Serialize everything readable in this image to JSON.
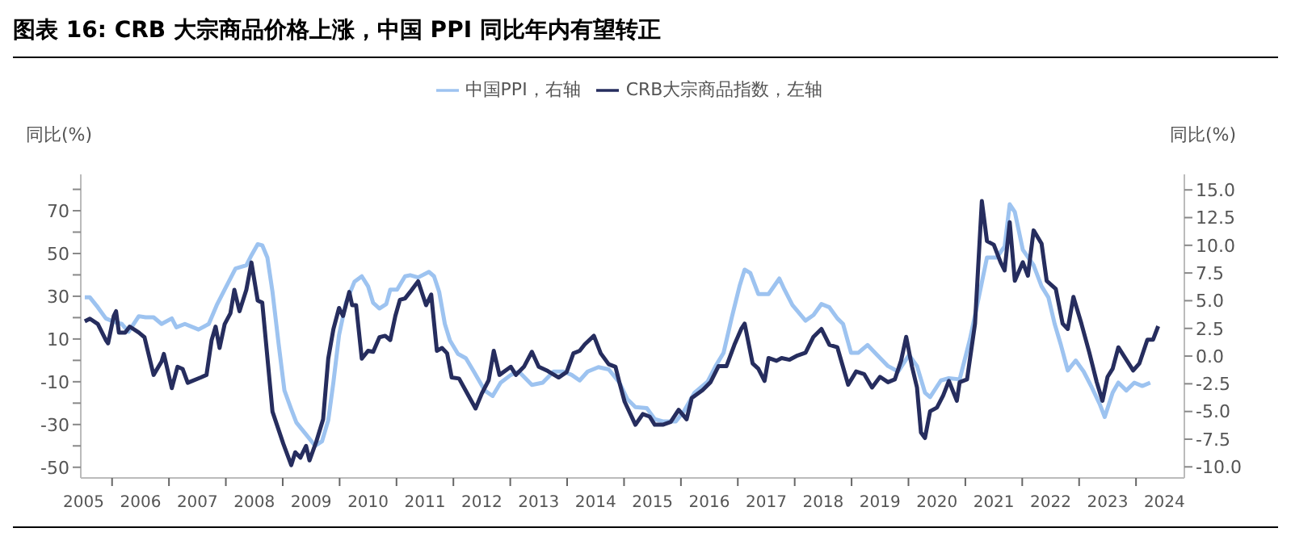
{
  "chart_data": {
    "type": "line",
    "title": "图表 16: CRB 大宗商品价格上涨，中国 PPI 同比年内有望转正",
    "ylabel": "同比(%)",
    "y2label": "同比(%)",
    "legend": "top",
    "marker": "none",
    "line_style": "solid",
    "xlim": [
      2005.45,
      2024.85
    ],
    "xticks": [
      {
        "value": 2005.5,
        "label": "2005"
      },
      {
        "value": 2006,
        "label": null
      },
      {
        "value": 2006.5,
        "label": "2006"
      },
      {
        "value": 2007,
        "label": null
      },
      {
        "value": 2007.5,
        "label": "2007"
      },
      {
        "value": 2008,
        "label": null
      },
      {
        "value": 2008.5,
        "label": "2008"
      },
      {
        "value": 2009,
        "label": null
      },
      {
        "value": 2009.5,
        "label": "2009"
      },
      {
        "value": 2010,
        "label": null
      },
      {
        "value": 2010.5,
        "label": "2010"
      },
      {
        "value": 2011,
        "label": null
      },
      {
        "value": 2011.5,
        "label": "2011"
      },
      {
        "value": 2012,
        "label": null
      },
      {
        "value": 2012.5,
        "label": "2012"
      },
      {
        "value": 2013,
        "label": null
      },
      {
        "value": 2013.5,
        "label": "2013"
      },
      {
        "value": 2014,
        "label": null
      },
      {
        "value": 2014.5,
        "label": "2014"
      },
      {
        "value": 2015,
        "label": null
      },
      {
        "value": 2015.5,
        "label": "2015"
      },
      {
        "value": 2016,
        "label": null
      },
      {
        "value": 2016.5,
        "label": "2016"
      },
      {
        "value": 2017,
        "label": null
      },
      {
        "value": 2017.5,
        "label": "2017"
      },
      {
        "value": 2018,
        "label": null
      },
      {
        "value": 2018.5,
        "label": "2018"
      },
      {
        "value": 2019,
        "label": null
      },
      {
        "value": 2019.5,
        "label": "2019"
      },
      {
        "value": 2020,
        "label": null
      },
      {
        "value": 2020.5,
        "label": "2020"
      },
      {
        "value": 2021,
        "label": null
      },
      {
        "value": 2021.5,
        "label": "2021"
      },
      {
        "value": 2022,
        "label": null
      },
      {
        "value": 2022.5,
        "label": "2022"
      },
      {
        "value": 2023,
        "label": null
      },
      {
        "value": 2023.5,
        "label": "2023"
      },
      {
        "value": 2024,
        "label": null
      },
      {
        "value": 2024.5,
        "label": "2024"
      }
    ],
    "ylim": [
      -55,
      87
    ],
    "yticks": [
      -50,
      {
        "value": -40,
        "label": null
      },
      -30,
      {
        "value": -20,
        "label": null
      },
      -10,
      {
        "value": 0,
        "label": null
      },
      10,
      {
        "value": 20,
        "label": null
      },
      30,
      {
        "value": 40,
        "label": null
      },
      50,
      {
        "value": 60,
        "label": null
      },
      70,
      {
        "value": 80,
        "label": null
      }
    ],
    "y2lim": [
      -11,
      16.4
    ],
    "y2ticks": [
      {
        "value": -10,
        "label": "-10.0"
      },
      {
        "value": -7.5,
        "label": "-7.5"
      },
      {
        "value": -5,
        "label": "-5.0"
      },
      {
        "value": -2.5,
        "label": "-2.5"
      },
      {
        "value": 0,
        "label": "0.0"
      },
      {
        "value": 2.5,
        "label": "2.5"
      },
      {
        "value": 5,
        "label": "5.0"
      },
      {
        "value": 7.5,
        "label": "7.5"
      },
      {
        "value": 10,
        "label": "10.0"
      },
      {
        "value": 12.5,
        "label": "12.5"
      },
      {
        "value": 15,
        "label": "15.0"
      }
    ],
    "series": [
      {
        "name": "中国PPI，右轴",
        "color": "#9dc3f0",
        "axis": "y2",
        "x": [
          2005.52,
          2005.61,
          2005.75,
          2005.89,
          2006.03,
          2006.17,
          2006.29,
          2006.47,
          2006.59,
          2006.73,
          2006.87,
          2007.05,
          2007.13,
          2007.28,
          2007.52,
          2007.7,
          2007.84,
          2007.98,
          2008.17,
          2008.36,
          2008.45,
          2008.56,
          2008.64,
          2008.73,
          2008.82,
          2008.93,
          2009.03,
          2009.15,
          2009.24,
          2009.43,
          2009.57,
          2009.69,
          2009.8,
          2009.89,
          2009.99,
          2010.11,
          2010.26,
          2010.39,
          2010.5,
          2010.59,
          2010.7,
          2010.82,
          2010.89,
          2011.01,
          2011.15,
          2011.24,
          2011.38,
          2011.57,
          2011.66,
          2011.75,
          2011.85,
          2011.94,
          2012.08,
          2012.22,
          2012.36,
          2012.55,
          2012.69,
          2012.83,
          2013.01,
          2013.15,
          2013.38,
          2013.57,
          2013.76,
          2013.94,
          2014.08,
          2014.22,
          2014.36,
          2014.55,
          2014.73,
          2014.92,
          2015.06,
          2015.2,
          2015.4,
          2015.54,
          2015.68,
          2015.91,
          2016.05,
          2016.24,
          2016.47,
          2016.61,
          2016.75,
          2016.89,
          2017.03,
          2017.12,
          2017.22,
          2017.36,
          2017.54,
          2017.73,
          2017.82,
          2017.96,
          2018.19,
          2018.33,
          2018.47,
          2018.61,
          2018.75,
          2018.85,
          2018.99,
          2019.12,
          2019.28,
          2019.45,
          2019.64,
          2019.82,
          2020.01,
          2020.15,
          2020.29,
          2020.38,
          2020.57,
          2020.71,
          2020.9,
          2021.08,
          2021.22,
          2021.38,
          2021.55,
          2021.69,
          2021.78,
          2021.87,
          2022.01,
          2022.2,
          2022.34,
          2022.46,
          2022.57,
          2022.68,
          2022.8,
          2022.94,
          2023.08,
          2023.22,
          2023.36,
          2023.45,
          2023.59,
          2023.69,
          2023.83,
          2023.97,
          2024.11,
          2024.25
        ],
        "values": [
          5.3,
          5.3,
          4.4,
          3.4,
          3.1,
          2.9,
          2.2,
          3.6,
          3.5,
          3.5,
          2.9,
          3.4,
          2.6,
          2.9,
          2.4,
          2.9,
          4.6,
          6.0,
          7.9,
          8.2,
          9.1,
          10.1,
          10.0,
          8.9,
          5.8,
          1.0,
          -3.1,
          -4.8,
          -6.0,
          -7.2,
          -8.1,
          -7.7,
          -5.8,
          -2.4,
          1.9,
          4.8,
          6.7,
          7.2,
          6.3,
          4.8,
          4.3,
          4.7,
          6.0,
          6.0,
          7.2,
          7.3,
          7.1,
          7.6,
          7.2,
          5.8,
          2.9,
          1.4,
          0.2,
          -0.2,
          -1.4,
          -3.1,
          -3.6,
          -2.4,
          -1.7,
          -1.4,
          -2.6,
          -2.4,
          -1.4,
          -1.4,
          -1.7,
          -2.2,
          -1.4,
          -1.0,
          -1.2,
          -2.4,
          -3.9,
          -4.6,
          -4.7,
          -5.7,
          -5.9,
          -5.9,
          -5.0,
          -3.3,
          -2.3,
          -0.9,
          0.3,
          3.4,
          6.3,
          7.8,
          7.5,
          5.6,
          5.6,
          7.0,
          6.0,
          4.6,
          3.2,
          3.7,
          4.7,
          4.4,
          3.4,
          2.9,
          0.3,
          0.3,
          1.0,
          0.1,
          -0.9,
          -1.4,
          0.1,
          -0.9,
          -3.3,
          -3.7,
          -2.2,
          -2.0,
          -2.1,
          1.5,
          4.9,
          8.9,
          8.9,
          9.9,
          13.7,
          13.0,
          9.6,
          8.2,
          6.3,
          5.3,
          2.9,
          1.0,
          -1.3,
          -0.4,
          -1.4,
          -2.8,
          -4.3,
          -5.5,
          -3.3,
          -2.4,
          -3.1,
          -2.4,
          -2.7,
          -2.4
        ]
      },
      {
        "name": "CRB大宗商品指数，左轴",
        "color": "#262d5e",
        "axis": "y",
        "x": [
          2005.52,
          2005.61,
          2005.75,
          2005.89,
          2005.93,
          2006.03,
          2006.07,
          2006.12,
          2006.23,
          2006.31,
          2006.47,
          2006.57,
          2006.73,
          2006.87,
          2006.91,
          2007.05,
          2007.15,
          2007.24,
          2007.33,
          2007.56,
          2007.66,
          2007.75,
          2007.82,
          2007.89,
          2007.98,
          2008.08,
          2008.15,
          2008.24,
          2008.36,
          2008.45,
          2008.56,
          2008.64,
          2008.82,
          2009.01,
          2009.15,
          2009.22,
          2009.31,
          2009.41,
          2009.47,
          2009.59,
          2009.71,
          2009.8,
          2009.89,
          2009.99,
          2010.06,
          2010.17,
          2010.22,
          2010.29,
          2010.39,
          2010.5,
          2010.59,
          2010.7,
          2010.8,
          2010.89,
          2010.98,
          2011.06,
          2011.15,
          2011.24,
          2011.38,
          2011.52,
          2011.61,
          2011.71,
          2011.8,
          2011.89,
          2011.97,
          2012.1,
          2012.22,
          2012.39,
          2012.5,
          2012.62,
          2012.71,
          2012.81,
          2013.01,
          2013.1,
          2013.24,
          2013.38,
          2013.5,
          2013.66,
          2013.85,
          2013.99,
          2014.11,
          2014.22,
          2014.31,
          2014.47,
          2014.59,
          2014.73,
          2014.85,
          2014.92,
          2015.01,
          2015.2,
          2015.33,
          2015.45,
          2015.54,
          2015.68,
          2015.82,
          2015.96,
          2016.1,
          2016.19,
          2016.38,
          2016.52,
          2016.66,
          2016.8,
          2016.94,
          2017.06,
          2017.12,
          2017.26,
          2017.36,
          2017.47,
          2017.54,
          2017.68,
          2017.77,
          2017.91,
          2018.05,
          2018.19,
          2018.33,
          2018.47,
          2018.61,
          2018.75,
          2018.94,
          2019.08,
          2019.22,
          2019.36,
          2019.5,
          2019.64,
          2019.76,
          2019.87,
          2019.96,
          2020.06,
          2020.15,
          2020.22,
          2020.29,
          2020.38,
          2020.5,
          2020.61,
          2020.71,
          2020.85,
          2020.9,
          2021.03,
          2021.17,
          2021.29,
          2021.38,
          2021.5,
          2021.62,
          2021.69,
          2021.78,
          2021.87,
          2022.01,
          2022.1,
          2022.2,
          2022.34,
          2022.43,
          2022.59,
          2022.71,
          2022.8,
          2022.9,
          2023.04,
          2023.18,
          2023.31,
          2023.41,
          2023.5,
          2023.59,
          2023.69,
          2023.83,
          2023.95,
          2024.06,
          2024.2,
          2024.3,
          2024.39
        ],
        "values": [
          18.3,
          19.5,
          17,
          9.5,
          8,
          20.8,
          23,
          13,
          13,
          15.8,
          13,
          10.8,
          -6.8,
          -0.5,
          3,
          -13,
          -3,
          -4,
          -10.5,
          -8,
          -6.8,
          9.5,
          15.8,
          5.8,
          17,
          22,
          33,
          23,
          33,
          45.8,
          28,
          27,
          -24,
          -39,
          -49,
          -43,
          -45.5,
          -40,
          -46.8,
          -38,
          -27.5,
          0.8,
          14.5,
          24.5,
          20.8,
          32,
          25.8,
          25.8,
          0.8,
          4.5,
          4,
          10.8,
          11.5,
          9.5,
          20.8,
          28.3,
          29,
          32,
          37,
          25.8,
          30.8,
          4.5,
          5.8,
          3.3,
          -8,
          -8.5,
          -14.3,
          -22.5,
          -15.5,
          -9.3,
          4.5,
          -6.8,
          -3,
          -6.8,
          -3,
          4,
          -3,
          -5,
          -8,
          -5.5,
          3.3,
          4.5,
          7.5,
          11.5,
          3.3,
          -1.8,
          -3,
          -10.5,
          -19.3,
          -30.1,
          -25.1,
          -26.3,
          -30.1,
          -30.1,
          -28.8,
          -23.1,
          -27.6,
          -17.6,
          -13.9,
          -10.2,
          -2.7,
          -2.7,
          7.3,
          14.7,
          17.2,
          -1.4,
          -3.9,
          -9.6,
          1.1,
          -0.2,
          1.1,
          0.3,
          2.3,
          3.6,
          11,
          14.7,
          7.3,
          6.1,
          -11.4,
          -5.2,
          -6.4,
          -12.7,
          -7.7,
          -10.2,
          -8.9,
          -0.2,
          11,
          -2.7,
          -12.7,
          -33.8,
          -36.3,
          -23.8,
          -22.1,
          -16.4,
          -9.6,
          -18.9,
          -10.2,
          -8.9,
          17.2,
          74.5,
          55.8,
          54.1,
          45.9,
          42.1,
          64.6,
          37.2,
          45.9,
          39.6,
          60.8,
          54.6,
          37.2,
          33.4,
          17.2,
          14.7,
          29.7,
          17.2,
          3.6,
          -10.2,
          -18.9,
          -7.7,
          -3.9,
          6.1,
          0.3,
          -4.7,
          -1.4,
          9.7,
          9.7,
          16
        ]
      }
    ]
  }
}
